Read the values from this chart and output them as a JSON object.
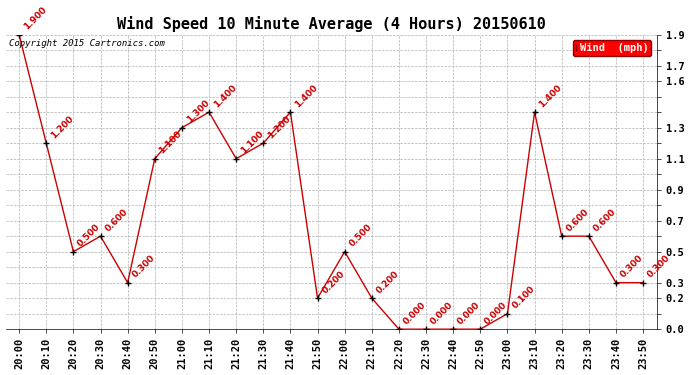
{
  "title": "Wind Speed 10 Minute Average (4 Hours) 20150610",
  "copyright": "Copyright 2015 Cartronics.com",
  "legend_label": "Wind  (mph)",
  "times": [
    "20:00",
    "20:10",
    "20:20",
    "20:30",
    "20:40",
    "20:50",
    "21:00",
    "21:10",
    "21:20",
    "21:30",
    "21:40",
    "21:50",
    "22:00",
    "22:10",
    "22:20",
    "22:30",
    "22:40",
    "22:50",
    "23:00",
    "23:10",
    "23:20",
    "23:30",
    "23:40",
    "23:50"
  ],
  "values": [
    1.9,
    1.2,
    0.5,
    0.6,
    0.3,
    1.1,
    1.3,
    1.4,
    1.1,
    1.2,
    1.4,
    0.2,
    0.5,
    0.2,
    0.0,
    0.0,
    0.0,
    0.0,
    0.1,
    1.4,
    0.6,
    0.6,
    0.3,
    0.3
  ],
  "line_color": "#cc0000",
  "marker_color": "#000000",
  "bg_color": "#ffffff",
  "grid_color": "#b0b0b0",
  "title_fontsize": 11,
  "label_fontsize": 7.5,
  "annotation_fontsize": 6.5,
  "ylim_min": 0.0,
  "ylim_max": 1.9,
  "yticks": [
    0.0,
    0.1,
    0.2,
    0.3,
    0.4,
    0.5,
    0.6,
    0.7,
    0.8,
    0.9,
    1.0,
    1.1,
    1.2,
    1.3,
    1.4,
    1.5,
    1.6,
    1.7,
    1.8,
    1.9
  ],
  "ytick_labels": [
    "0.0",
    "",
    "0.2",
    "0.3",
    "",
    "0.5",
    "",
    "0.7",
    "",
    "0.9",
    "",
    "1.1",
    "",
    "1.3",
    "",
    "",
    "1.6",
    "1.7",
    "",
    "1.9"
  ]
}
